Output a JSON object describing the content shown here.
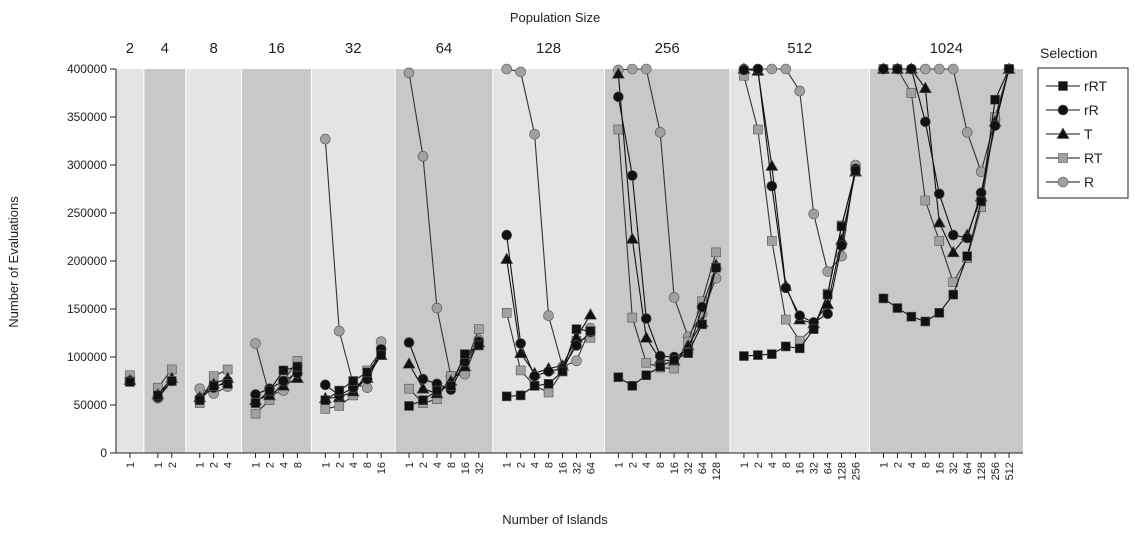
{
  "chart_data": {
    "type": "line",
    "top_axis_title": "Population Size",
    "xlabel": "Number of Islands",
    "ylabel": "Number of Evaluations",
    "ylim": [
      0,
      400000
    ],
    "yticks": [
      0,
      50000,
      100000,
      150000,
      200000,
      250000,
      300000,
      350000,
      400000
    ],
    "ytick_labels": [
      "0",
      "50000",
      "100000",
      "150000",
      "200000",
      "250000",
      "300000",
      "350000",
      "400000"
    ],
    "grid": false,
    "legend": {
      "title": "Selection",
      "position": "right"
    },
    "series_styles": [
      {
        "name": "rRT",
        "marker": "square",
        "color": "#111111"
      },
      {
        "name": "rR",
        "marker": "circle",
        "color": "#111111"
      },
      {
        "name": "T",
        "marker": "triangle",
        "color": "#111111"
      },
      {
        "name": "RT",
        "marker": "square",
        "color": "#a0a0a0"
      },
      {
        "name": "R",
        "marker": "circle",
        "color": "#a0a0a0"
      }
    ],
    "panel_colors": {
      "light": "#e4e4e4",
      "dark": "#c8c8c8"
    },
    "panels": [
      {
        "population": "2",
        "islands": [
          "1"
        ],
        "series": {
          "rRT": [
            74000
          ],
          "rR": [
            75000
          ],
          "T": [
            76000
          ],
          "RT": [
            81000
          ],
          "R": [
            78000
          ]
        }
      },
      {
        "population": "4",
        "islands": [
          "1",
          "2"
        ],
        "series": {
          "rRT": [
            60000,
            75000
          ],
          "rR": [
            58000,
            75000
          ],
          "T": [
            61000,
            78000
          ],
          "RT": [
            68000,
            87000
          ],
          "R": [
            57000,
            75000
          ]
        }
      },
      {
        "population": "8",
        "islands": [
          "1",
          "2",
          "4"
        ],
        "series": {
          "rRT": [
            55000,
            70000,
            72000
          ],
          "rR": [
            57000,
            68000,
            75000
          ],
          "T": [
            58000,
            72000,
            78000
          ],
          "RT": [
            52000,
            80000,
            87000
          ],
          "R": [
            67000,
            62000,
            69000
          ]
        }
      },
      {
        "population": "16",
        "islands": [
          "1",
          "2",
          "4",
          "8"
        ],
        "series": {
          "rRT": [
            52000,
            65000,
            86000,
            90000
          ],
          "rR": [
            61000,
            67000,
            75000,
            83000
          ],
          "T": [
            55000,
            60000,
            70000,
            78000
          ],
          "RT": [
            41000,
            55000,
            75000,
            96000
          ],
          "R": [
            114000,
            60000,
            65000,
            90000
          ]
        }
      },
      {
        "population": "32",
        "islands": [
          "1",
          "2",
          "4",
          "8",
          "16"
        ],
        "series": {
          "rRT": [
            55000,
            65000,
            75000,
            84000,
            102000
          ],
          "rR": [
            71000,
            60000,
            68000,
            77000,
            108000
          ],
          "T": [
            57000,
            58000,
            64000,
            78000,
            102000
          ],
          "RT": [
            46000,
            49000,
            60000,
            86000,
            107000
          ],
          "R": [
            327000,
            127000,
            72000,
            68000,
            116000
          ]
        }
      },
      {
        "population": "64",
        "islands": [
          "1",
          "2",
          "4",
          "8",
          "16",
          "32"
        ],
        "series": {
          "rRT": [
            49000,
            55000,
            65000,
            70000,
            103000,
            112000
          ],
          "rR": [
            115000,
            77000,
            72000,
            66000,
            95000,
            116000
          ],
          "T": [
            93000,
            67000,
            62000,
            75000,
            90000,
            115000
          ],
          "RT": [
            67000,
            52000,
            56000,
            80000,
            91000,
            129000
          ],
          "R": [
            396000,
            309000,
            151000,
            80000,
            82000,
            118000
          ]
        }
      },
      {
        "population": "128",
        "islands": [
          "1",
          "2",
          "4",
          "8",
          "16",
          "32",
          "64"
        ],
        "series": {
          "rRT": [
            59000,
            60000,
            70000,
            72000,
            85000,
            129000,
            127000
          ],
          "rR": [
            227000,
            114000,
            80000,
            85000,
            88000,
            112000,
            126000
          ],
          "T": [
            202000,
            104000,
            83000,
            88000,
            91000,
            120000,
            144000
          ],
          "RT": [
            146000,
            86000,
            70000,
            63000,
            85000,
            117000,
            120000
          ],
          "R": [
            400000,
            397000,
            332000,
            143000,
            90000,
            96000,
            130000
          ]
        }
      },
      {
        "population": "256",
        "islands": [
          "1",
          "2",
          "4",
          "8",
          "16",
          "32",
          "64",
          "128"
        ],
        "series": {
          "rRT": [
            79000,
            70000,
            81000,
            90000,
            97000,
            104000,
            134000,
            193000
          ],
          "rR": [
            371000,
            289000,
            140000,
            101000,
            100000,
            105000,
            152000,
            193000
          ],
          "T": [
            395000,
            223000,
            120000,
            97000,
            96000,
            112000,
            136000,
            196000
          ],
          "RT": [
            337000,
            141000,
            94000,
            89000,
            88000,
            116000,
            158000,
            209000
          ],
          "R": [
            399000,
            400000,
            400000,
            334000,
            162000,
            121000,
            145000,
            182000
          ]
        }
      },
      {
        "population": "512",
        "islands": [
          "1",
          "2",
          "4",
          "8",
          "16",
          "32",
          "64",
          "128",
          "256"
        ],
        "series": {
          "rRT": [
            101000,
            102000,
            103000,
            111000,
            109000,
            129000,
            165000,
            236000,
            294000
          ],
          "rR": [
            399000,
            400000,
            278000,
            172000,
            143000,
            136000,
            145000,
            216000,
            296000
          ],
          "T": [
            400000,
            398000,
            299000,
            174000,
            139000,
            135000,
            155000,
            222000,
            293000
          ],
          "RT": [
            393000,
            337000,
            221000,
            139000,
            117000,
            131000,
            166000,
            237000,
            293000
          ],
          "R": [
            400000,
            400000,
            400000,
            400000,
            377000,
            249000,
            189000,
            205000,
            300000
          ]
        }
      },
      {
        "population": "1024",
        "islands": [
          "1",
          "2",
          "4",
          "8",
          "16",
          "32",
          "64",
          "128",
          "256",
          "512"
        ],
        "series": {
          "rRT": [
            161000,
            151000,
            142000,
            137000,
            146000,
            165000,
            205000,
            262000,
            368000,
            400000
          ],
          "rR": [
            400000,
            400000,
            400000,
            345000,
            270000,
            227000,
            224000,
            271000,
            341000,
            400000
          ],
          "T": [
            400000,
            400000,
            400000,
            380000,
            240000,
            209000,
            227000,
            267000,
            345000,
            400000
          ],
          "RT": [
            400000,
            400000,
            375000,
            263000,
            221000,
            178000,
            203000,
            256000,
            350000,
            400000
          ],
          "R": [
            400000,
            400000,
            400000,
            400000,
            400000,
            400000,
            334000,
            293000,
            347000,
            400000
          ]
        }
      }
    ]
  }
}
